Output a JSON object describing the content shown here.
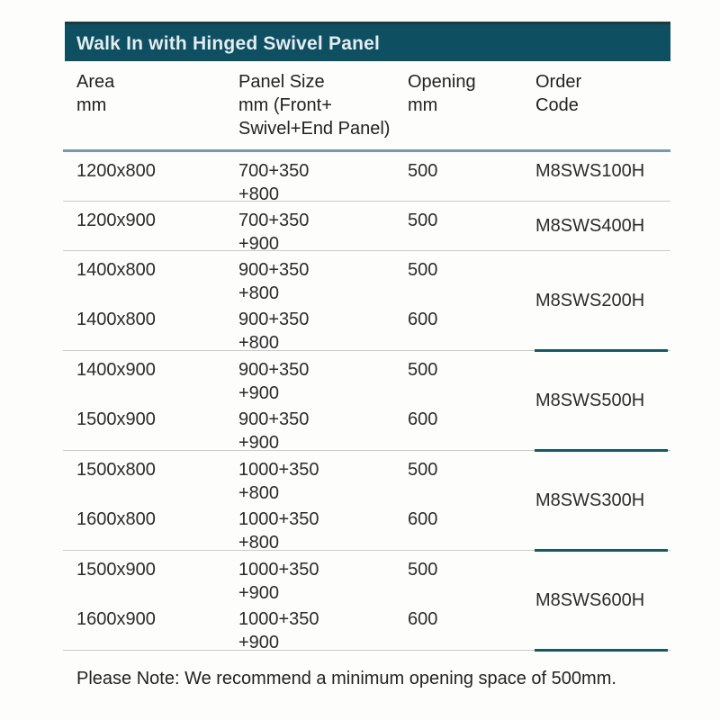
{
  "header": {
    "title": "Walk In with Hinged Swivel Panel"
  },
  "columns": [
    {
      "lines": [
        "Area",
        "mm"
      ]
    },
    {
      "lines": [
        "Panel Size",
        "mm (Front+",
        "Swivel+End Panel)"
      ]
    },
    {
      "lines": [
        "Opening",
        "mm"
      ]
    },
    {
      "lines": [
        "Order",
        "Code"
      ]
    }
  ],
  "groups": [
    {
      "code": "M8SWS100H",
      "code_align": "top",
      "teal_underline": false,
      "rows": [
        {
          "area": "1200x800",
          "panel": [
            "700+350",
            "+800"
          ],
          "opening": "500"
        }
      ]
    },
    {
      "code": "M8SWS400H",
      "code_align": "center",
      "teal_underline": false,
      "rows": [
        {
          "area": "1200x900",
          "panel": [
            "700+350",
            "+900"
          ],
          "opening": "500"
        }
      ]
    },
    {
      "code": "M8SWS200H",
      "code_align": "center",
      "teal_underline": true,
      "rows": [
        {
          "area": "1400x800",
          "panel": [
            "900+350",
            "+800"
          ],
          "opening": "500"
        },
        {
          "area": "1400x800",
          "panel": [
            "900+350",
            "+800"
          ],
          "opening": "600"
        }
      ]
    },
    {
      "code": "M8SWS500H",
      "code_align": "center",
      "teal_underline": true,
      "rows": [
        {
          "area": "1400x900",
          "panel": [
            "900+350",
            "+900"
          ],
          "opening": "500"
        },
        {
          "area": "1500x900",
          "panel": [
            "900+350",
            "+900"
          ],
          "opening": "600"
        }
      ]
    },
    {
      "code": "M8SWS300H",
      "code_align": "center",
      "teal_underline": true,
      "rows": [
        {
          "area": "1500x800",
          "panel": [
            "1000+350",
            "+800"
          ],
          "opening": "500"
        },
        {
          "area": "1600x800",
          "panel": [
            "1000+350",
            "+800"
          ],
          "opening": "600"
        }
      ]
    },
    {
      "code": "M8SWS600H",
      "code_align": "center",
      "teal_underline": true,
      "rows": [
        {
          "area": "1500x900",
          "panel": [
            "1000+350",
            "+900"
          ],
          "opening": "500"
        },
        {
          "area": "1600x900",
          "panel": [
            "1000+350",
            "+900"
          ],
          "opening": "600"
        }
      ]
    }
  ],
  "note": "Please Note: We recommend a minimum opening space of 500mm.",
  "colors": {
    "header_bar": "#0e4f62",
    "header_underline": "#7b99a6",
    "order_code_underline": "#1d5761",
    "row_separator": "#c9cbcb"
  }
}
